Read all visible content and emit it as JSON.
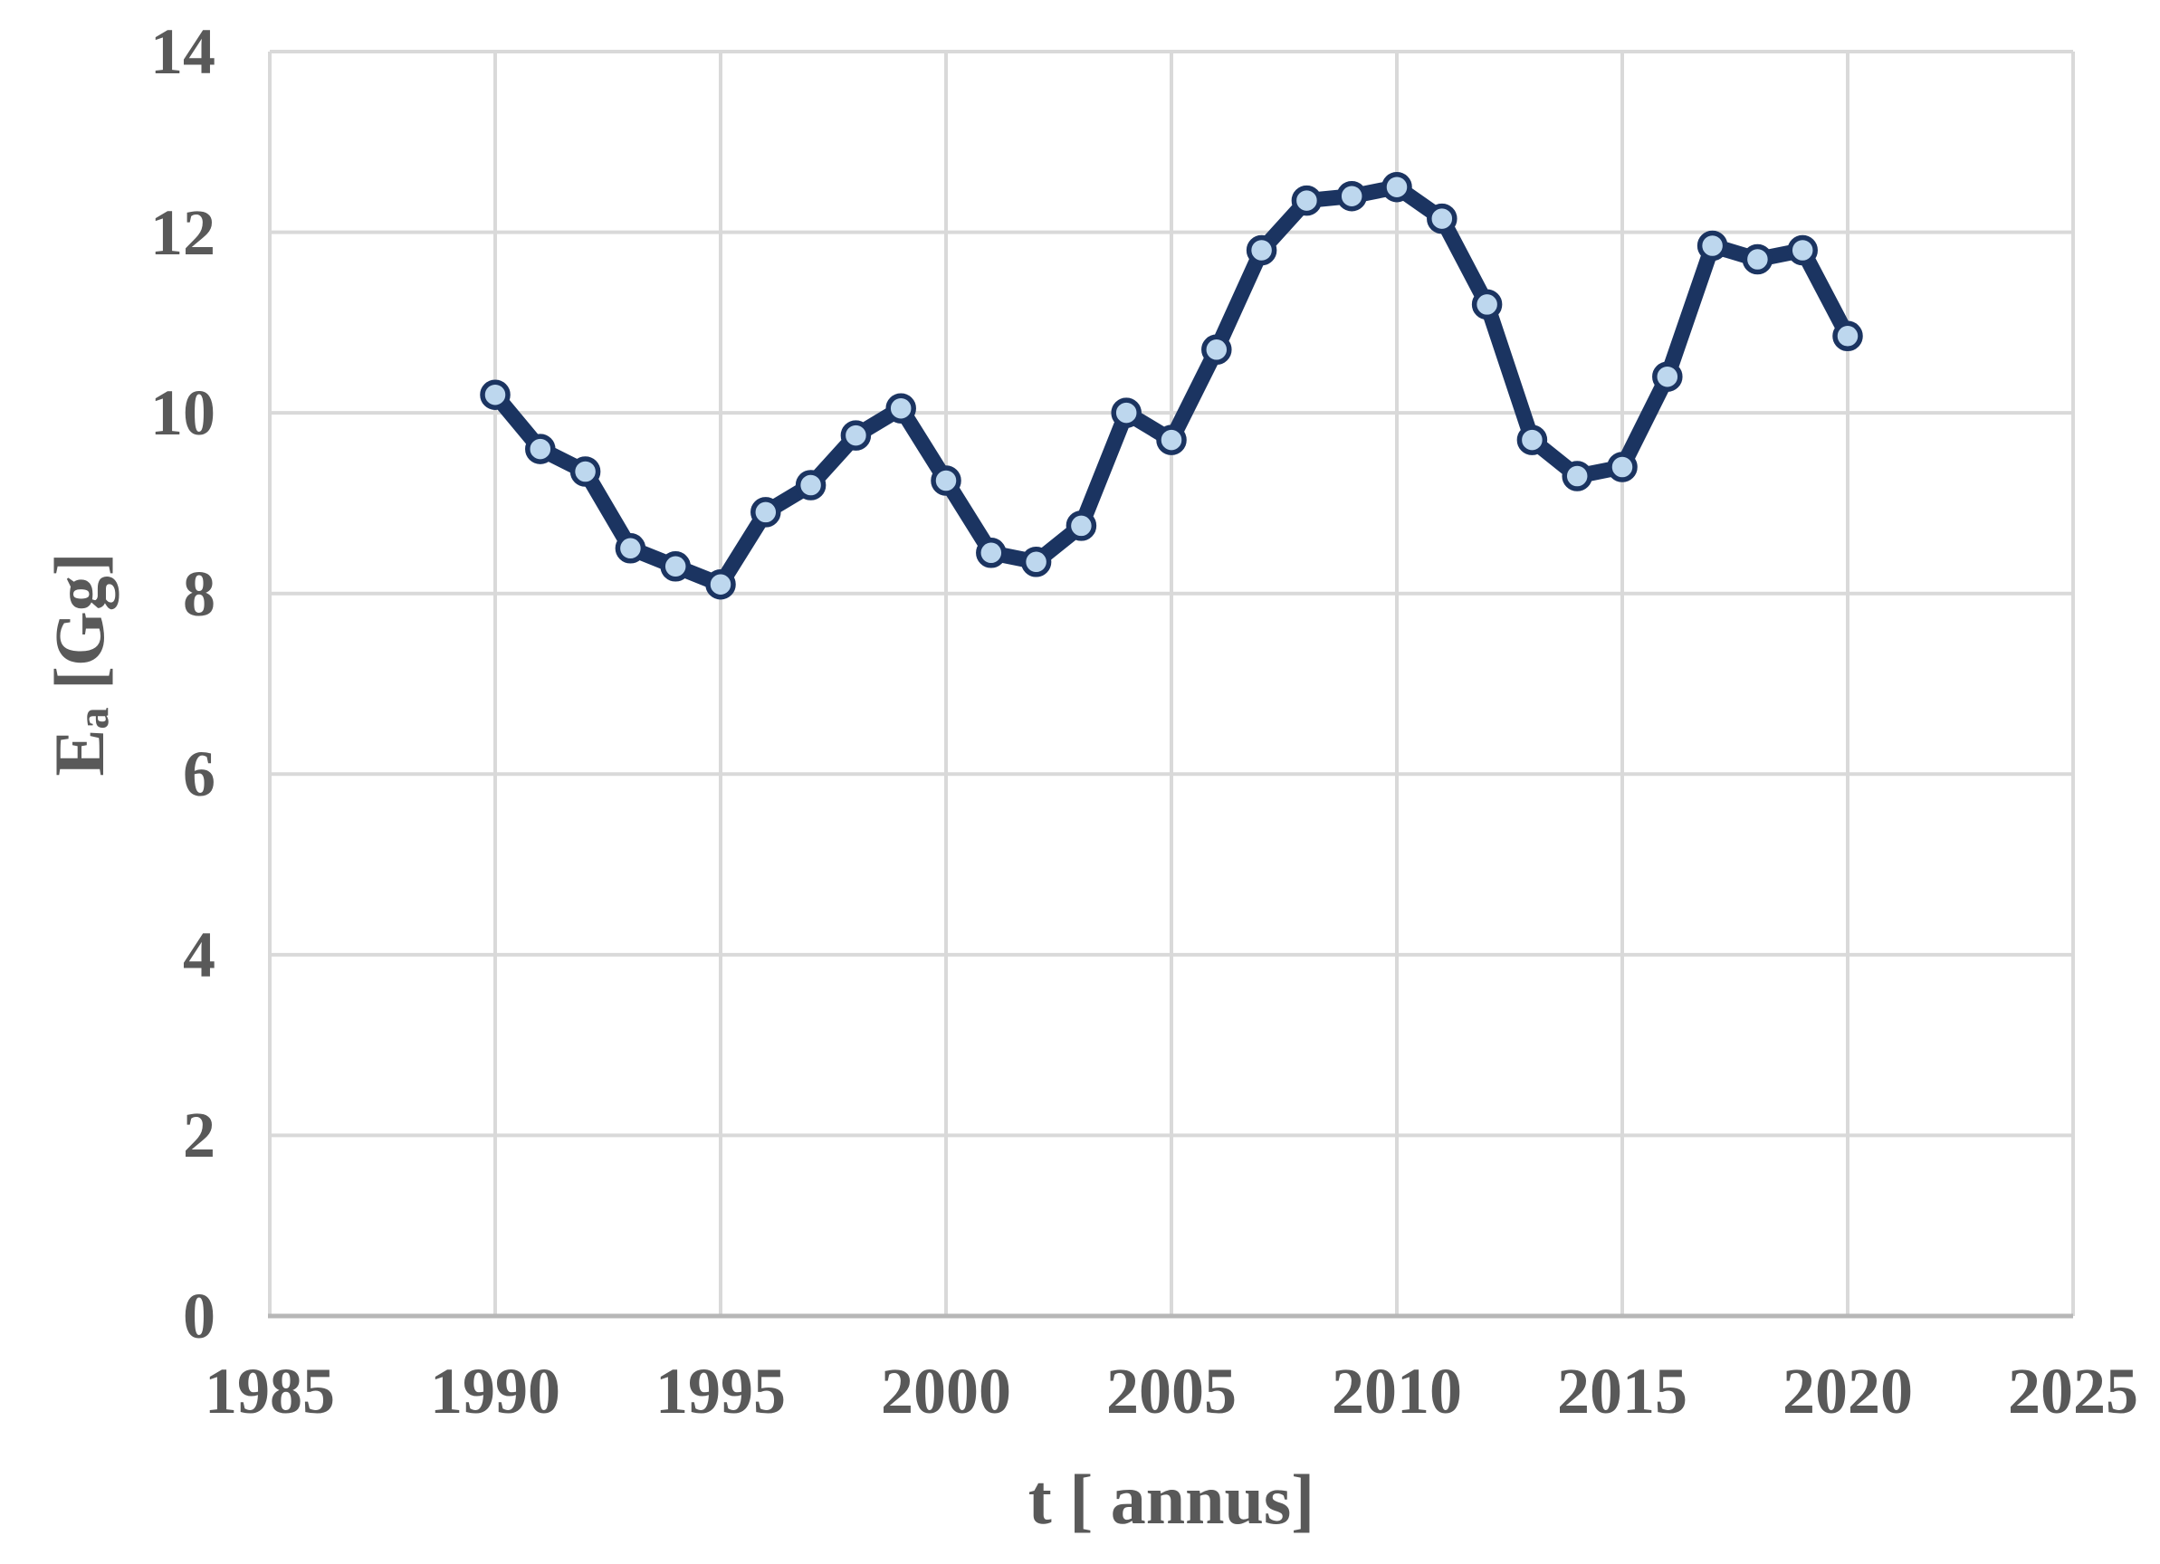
{
  "chart_data": {
    "type": "line",
    "title": "",
    "xlabel": "t [ annus]",
    "ylabel": {
      "base": "E",
      "subscript": "a",
      "unit": " [Gg]"
    },
    "x": [
      1990,
      1991,
      1992,
      1993,
      1994,
      1995,
      1996,
      1997,
      1998,
      1999,
      2000,
      2001,
      2002,
      2003,
      2004,
      2005,
      2006,
      2007,
      2008,
      2009,
      2010,
      2011,
      2012,
      2013,
      2014,
      2015,
      2016,
      2017,
      2018,
      2019,
      2020
    ],
    "series": [
      {
        "name": "Ea",
        "values": [
          10.2,
          9.6,
          9.35,
          8.5,
          8.3,
          8.1,
          8.9,
          9.2,
          9.75,
          10.05,
          9.25,
          8.45,
          8.35,
          8.75,
          10.0,
          9.7,
          10.7,
          11.8,
          12.35,
          12.4,
          12.5,
          12.15,
          11.2,
          9.7,
          9.3,
          9.4,
          10.4,
          11.85,
          11.7,
          11.8,
          10.85
        ]
      }
    ],
    "xlim": [
      1985,
      2025
    ],
    "ylim": [
      0,
      14
    ],
    "x_ticks": [
      1985,
      1990,
      1995,
      2000,
      2005,
      2010,
      2015,
      2020,
      2025
    ],
    "y_ticks": [
      0,
      2,
      4,
      6,
      8,
      10,
      12,
      14
    ],
    "grid": true,
    "legend": false,
    "colors": {
      "line": "#1B3461",
      "marker_fill": "#BDD7EE",
      "marker_stroke": "#1B3461",
      "gridline": "#D9D9D9",
      "axis_line": "#B7B7B7",
      "text": "#595959"
    }
  }
}
